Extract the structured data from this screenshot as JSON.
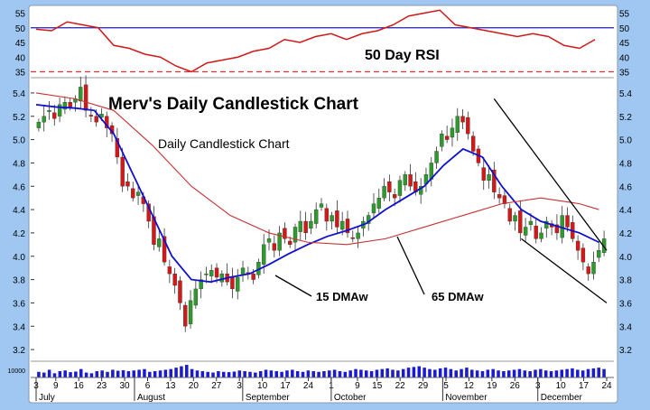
{
  "colors": {
    "background": "#9fc7f2",
    "panel": "#ffffff",
    "up_candle": "#2e9a2e",
    "down_candle": "#d31818",
    "ma_fast": "#1010d0",
    "ma_slow": "#c83030",
    "rsi_line": "#d01818",
    "rsi_level50": "#2020b0",
    "rsi_level35": "#e03030",
    "trendline": "#000000",
    "volume": "#1a1ad0"
  },
  "chart_data": [
    {
      "type": "line",
      "panel": "rsi",
      "title": "50 Day RSI",
      "ylim": [
        33,
        57
      ],
      "yticks": [
        35,
        40,
        45,
        50,
        55
      ],
      "reference_lines": [
        {
          "value": 50,
          "style": "solid"
        },
        {
          "value": 35,
          "style": "dashed"
        }
      ],
      "x_day_range": [
        0,
        147
      ],
      "series": [
        {
          "x": [
            0,
            4,
            8,
            12,
            16,
            20,
            24,
            28,
            32,
            36,
            40,
            44,
            48,
            52,
            56,
            60,
            64,
            68,
            72,
            76,
            80,
            84,
            88,
            92,
            96,
            100,
            104,
            108,
            112,
            116,
            120,
            124,
            128,
            132,
            136,
            140,
            144
          ],
          "values": [
            49.5,
            49,
            52,
            51,
            50,
            44,
            43,
            41,
            40,
            37,
            35,
            38,
            39,
            40,
            42,
            43,
            46,
            45,
            47,
            48,
            46,
            48,
            49,
            51,
            54,
            55,
            56,
            51,
            50,
            49,
            48,
            47,
            48,
            47,
            44,
            43,
            46
          ]
        }
      ]
    },
    {
      "type": "candlestick",
      "panel": "price",
      "title": "Merv's Daily Candlestick Chart",
      "subtitle": "Daily Candlestick Chart",
      "ylim": [
        3.1,
        5.5
      ],
      "yticks": [
        "3.2",
        "3.4",
        "3.6",
        "3.8",
        "4.0",
        "4.2",
        "4.4",
        "4.6",
        "4.8",
        "5.0",
        "5.2",
        "5.4"
      ],
      "x_day_range": [
        0,
        147
      ],
      "xtick_labels": [
        "3",
        "9",
        "16",
        "23",
        "30",
        "6",
        "13",
        "20",
        "27",
        "3",
        "10",
        "17",
        "24",
        "1",
        "9",
        "15",
        "22",
        "29",
        "5",
        "12",
        "19",
        "26",
        "3",
        "10",
        "17",
        "24"
      ],
      "xtick_days": [
        0,
        6,
        13,
        20,
        27,
        34,
        41,
        48,
        55,
        62,
        69,
        76,
        83,
        90,
        98,
        104,
        111,
        118,
        125,
        132,
        139,
        146,
        153,
        160,
        167,
        174
      ],
      "month_labels": [
        "July",
        "August",
        "September",
        "October",
        "November",
        "December"
      ],
      "month_days": [
        0,
        30,
        63,
        90,
        124,
        153
      ],
      "closes": [
        5.15,
        5.2,
        5.25,
        5.18,
        5.3,
        5.32,
        5.28,
        5.35,
        5.45,
        5.25,
        5.2,
        5.15,
        5.22,
        5.1,
        5.05,
        4.85,
        4.6,
        4.6,
        4.5,
        4.55,
        4.45,
        4.3,
        4.1,
        4.15,
        3.95,
        3.85,
        3.75,
        3.6,
        3.4,
        3.62,
        3.72,
        3.8,
        3.85,
        3.88,
        3.82,
        3.85,
        3.78,
        3.72,
        3.82,
        3.9,
        3.85,
        3.8,
        3.95,
        4.1,
        4.15,
        4.05,
        4.2,
        4.15,
        4.1,
        4.25,
        4.3,
        4.2,
        4.3,
        4.4,
        4.45,
        4.3,
        4.35,
        4.25,
        4.3,
        4.2,
        4.15,
        4.2,
        4.3,
        4.35,
        4.45,
        4.5,
        4.6,
        4.55,
        4.5,
        4.65,
        4.7,
        4.6,
        4.55,
        4.6,
        4.7,
        4.8,
        4.9,
        5.05,
        5.0,
        5.1,
        5.2,
        5.15,
        5.05,
        4.9,
        4.8,
        4.65,
        4.7,
        4.55,
        4.5,
        4.45,
        4.3,
        4.35,
        4.2,
        4.25,
        4.3,
        4.15,
        4.2,
        4.3,
        4.25,
        4.2,
        4.35,
        4.25,
        4.15,
        4.05,
        3.95,
        3.85,
        3.95,
        4.05,
        4.15
      ],
      "series": [
        {
          "name": "15 DMAw",
          "x": [
            0,
            5,
            10,
            15,
            20,
            25,
            30,
            35,
            40,
            45,
            50,
            55,
            60,
            65,
            70,
            75,
            80,
            85,
            90,
            95,
            100,
            105,
            110,
            115,
            120,
            125,
            130,
            135,
            140,
            145
          ],
          "values": [
            5.3,
            5.28,
            5.27,
            5.25,
            5.05,
            4.7,
            4.35,
            4.0,
            3.8,
            3.78,
            3.82,
            3.85,
            3.93,
            4.02,
            4.1,
            4.17,
            4.22,
            4.28,
            4.4,
            4.5,
            4.6,
            4.78,
            4.92,
            4.85,
            4.6,
            4.4,
            4.3,
            4.25,
            4.2,
            4.12
          ]
        },
        {
          "name": "65 DMAw",
          "x": [
            0,
            10,
            20,
            30,
            40,
            50,
            60,
            70,
            80,
            90,
            100,
            110,
            120,
            130,
            140,
            145
          ],
          "values": [
            5.4,
            5.35,
            5.25,
            4.95,
            4.6,
            4.35,
            4.2,
            4.12,
            4.1,
            4.15,
            4.25,
            4.35,
            4.45,
            4.5,
            4.45,
            4.4
          ]
        }
      ],
      "trendlines": [
        {
          "from": [
            118,
            5.35
          ],
          "to": [
            147,
            4.05
          ]
        },
        {
          "from": [
            125,
            4.15
          ],
          "to": [
            147,
            3.6
          ]
        }
      ],
      "annotations": [
        "15 DMAw",
        "65 DMAw"
      ]
    },
    {
      "type": "bar",
      "panel": "volume",
      "ytick": "10000",
      "values": [
        40,
        35,
        55,
        30,
        45,
        50,
        38,
        42,
        60,
        35,
        30,
        45,
        50,
        40,
        55,
        48,
        52,
        45,
        50,
        55,
        60,
        40,
        45,
        50,
        55,
        60,
        70,
        80,
        90,
        60,
        50,
        45,
        40,
        35,
        45,
        40,
        38,
        42,
        50,
        45,
        40,
        35,
        45,
        55,
        50,
        45,
        40,
        50,
        55,
        45,
        40,
        50,
        45,
        40,
        45,
        50,
        55,
        45,
        40,
        50,
        60,
        55,
        50,
        45,
        55,
        60,
        65,
        55,
        50,
        60,
        70,
        75,
        80,
        70,
        60,
        55,
        65,
        70,
        60,
        50,
        60,
        70,
        55,
        50,
        45,
        55,
        60,
        50,
        45,
        50,
        55,
        60,
        50,
        45,
        55,
        60,
        50,
        45,
        50,
        55,
        60,
        65,
        55,
        50,
        60,
        65,
        70,
        60
      ]
    }
  ]
}
